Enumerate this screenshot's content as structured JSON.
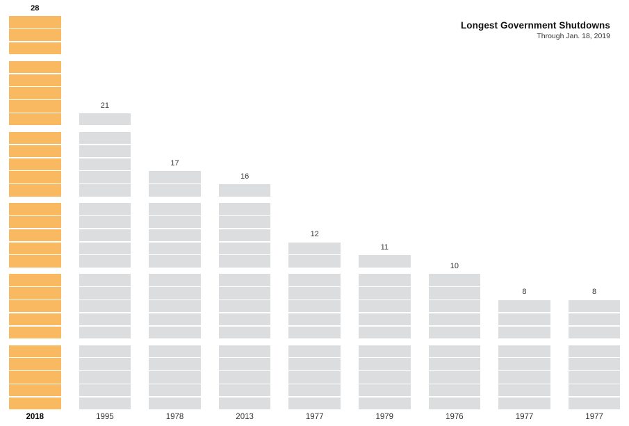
{
  "header": {
    "title": "Longest Government Shutdowns",
    "subtitle": "Through Jan. 18, 2019"
  },
  "chart_data": {
    "type": "bar",
    "title": "Longest Government Shutdowns",
    "subtitle": "Through Jan. 18, 2019",
    "unit": "days",
    "orientation": "vertical",
    "segmented": true,
    "segment_group_size": 5,
    "categories": [
      "2018",
      "1995",
      "1978",
      "2013",
      "1977",
      "1979",
      "1976",
      "1977",
      "1977"
    ],
    "values": [
      28,
      21,
      17,
      16,
      12,
      11,
      10,
      8,
      8
    ],
    "bars": [
      {
        "year": "2018",
        "days": 28,
        "highlighted": true
      },
      {
        "year": "1995",
        "days": 21,
        "highlighted": false
      },
      {
        "year": "1978",
        "days": 17,
        "highlighted": false
      },
      {
        "year": "2013",
        "days": 16,
        "highlighted": false
      },
      {
        "year": "1977",
        "days": 12,
        "highlighted": false
      },
      {
        "year": "1979",
        "days": 11,
        "highlighted": false
      },
      {
        "year": "1976",
        "days": 10,
        "highlighted": false
      },
      {
        "year": "1977",
        "days": 8,
        "highlighted": false
      },
      {
        "year": "1977",
        "days": 8,
        "highlighted": false
      }
    ],
    "colors": {
      "highlight_bar": "#f8b960",
      "default_bar": "#dcdddf",
      "background": "#ffffff",
      "label_text": "#333333",
      "highlight_text": "#000000"
    },
    "legend": "none",
    "axes": "none"
  }
}
